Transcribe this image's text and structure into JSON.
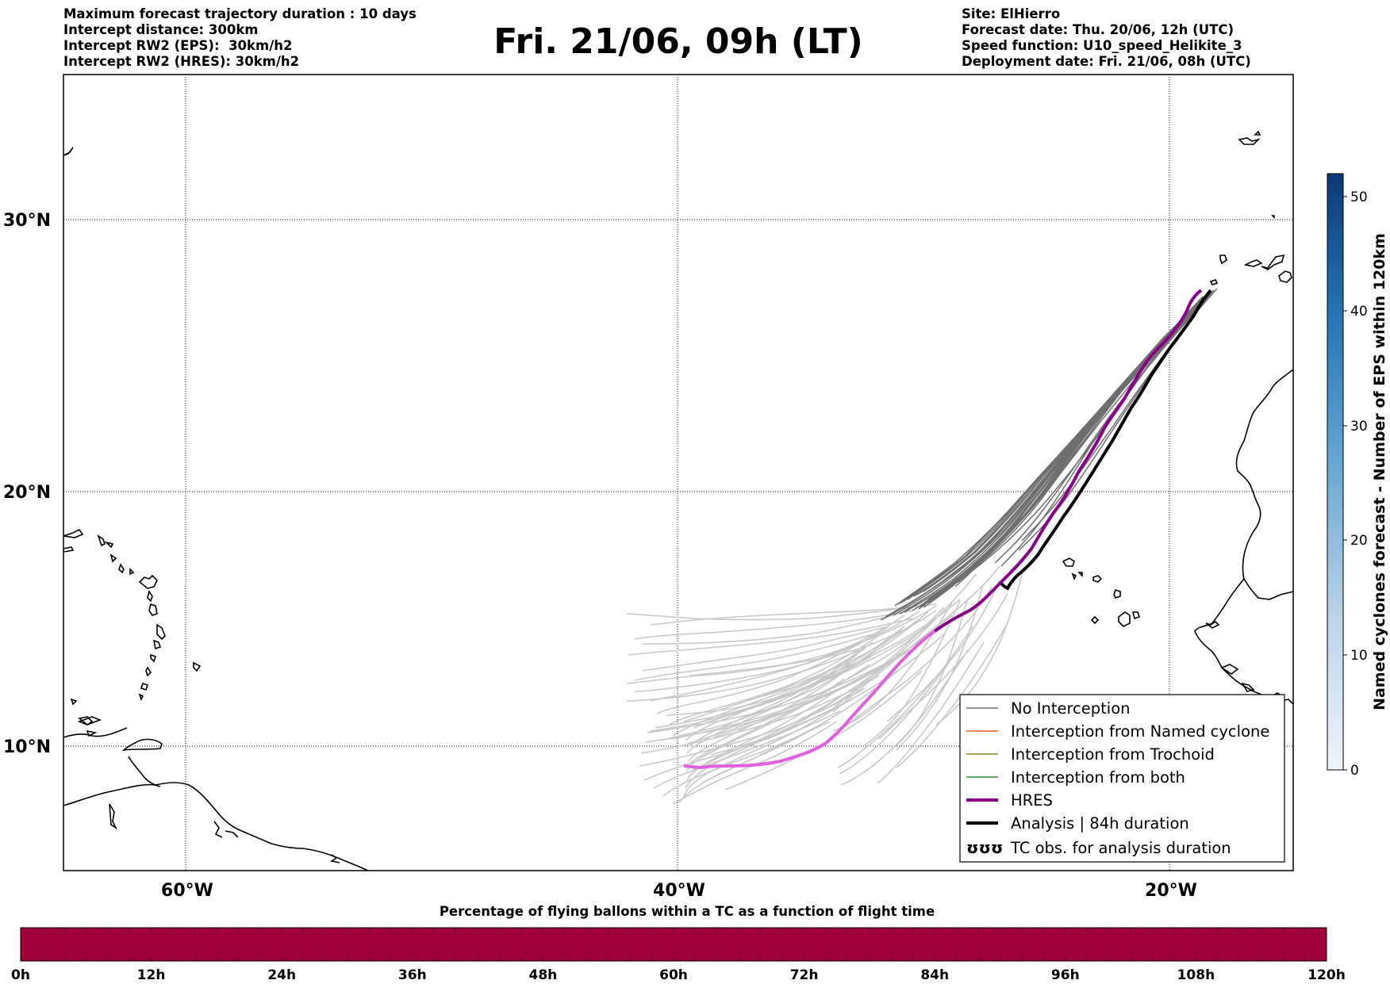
{
  "header_left": [
    "Maximum forecast trajectory duration : 10 days",
    "Intercept distance: 300km",
    "Intercept RW2 (EPS):  30km/h2",
    "Intercept RW2 (HRES): 30km/h2"
  ],
  "header_right": [
    "Site: ElHierro",
    "Forecast date: Thu. 20/06, 12h (UTC)",
    "Speed function: U10_speed_Helikite_3",
    "Deployment date: Fri. 21/06, 08h (UTC)"
  ],
  "title": "Fri. 21/06, 09h (LT)",
  "map": {
    "lat_labels": [
      "30°N",
      "20°N",
      "10°N"
    ],
    "lon_labels": [
      "60°W",
      "40°W",
      "20°W"
    ],
    "gridline_style": "dotted",
    "colors": {
      "no_interception": "#6e6e6e",
      "light_trajectories": "#c8c8c8",
      "interception_named_cyclone": "#e8622a",
      "interception_trochoid": "#8a8a2a",
      "interception_both": "#2e8b2e",
      "hres": "#8b008b",
      "hres_light": "#e060e0",
      "analysis": "#000000",
      "coastline": "#000000"
    }
  },
  "legend": [
    {
      "label": "No Interception",
      "icon": "gray-line"
    },
    {
      "label": "Interception from Named cyclone",
      "icon": "orange-line"
    },
    {
      "label": "Interception from Trochoid",
      "icon": "olive-line"
    },
    {
      "label": "Interception from both",
      "icon": "green-line"
    },
    {
      "label": "HRES",
      "icon": "purple-thick-line"
    },
    {
      "label": "Analysis | 84h duration",
      "icon": "black-thick-line"
    },
    {
      "label": "TC obs. for analysis duration",
      "icon": "cyclone-symbols-icon",
      "symbol": "ʊʊʊ"
    }
  ],
  "colorbar": {
    "label": "Named cyclones forecast - Number of EPS within 120km",
    "ticks": [
      "0",
      "10",
      "20",
      "30",
      "40",
      "50"
    ],
    "range": [
      0,
      52
    ],
    "color_low": "#e3eef9",
    "color_high": "#0b3a78"
  },
  "bottom_bar": {
    "title": "Percentage of flying ballons within a TC as a function of flight time",
    "ticks": [
      "0h",
      "12h",
      "24h",
      "36h",
      "48h",
      "60h",
      "72h",
      "84h",
      "96h",
      "108h",
      "120h"
    ],
    "fill_color": "#a0003a"
  }
}
